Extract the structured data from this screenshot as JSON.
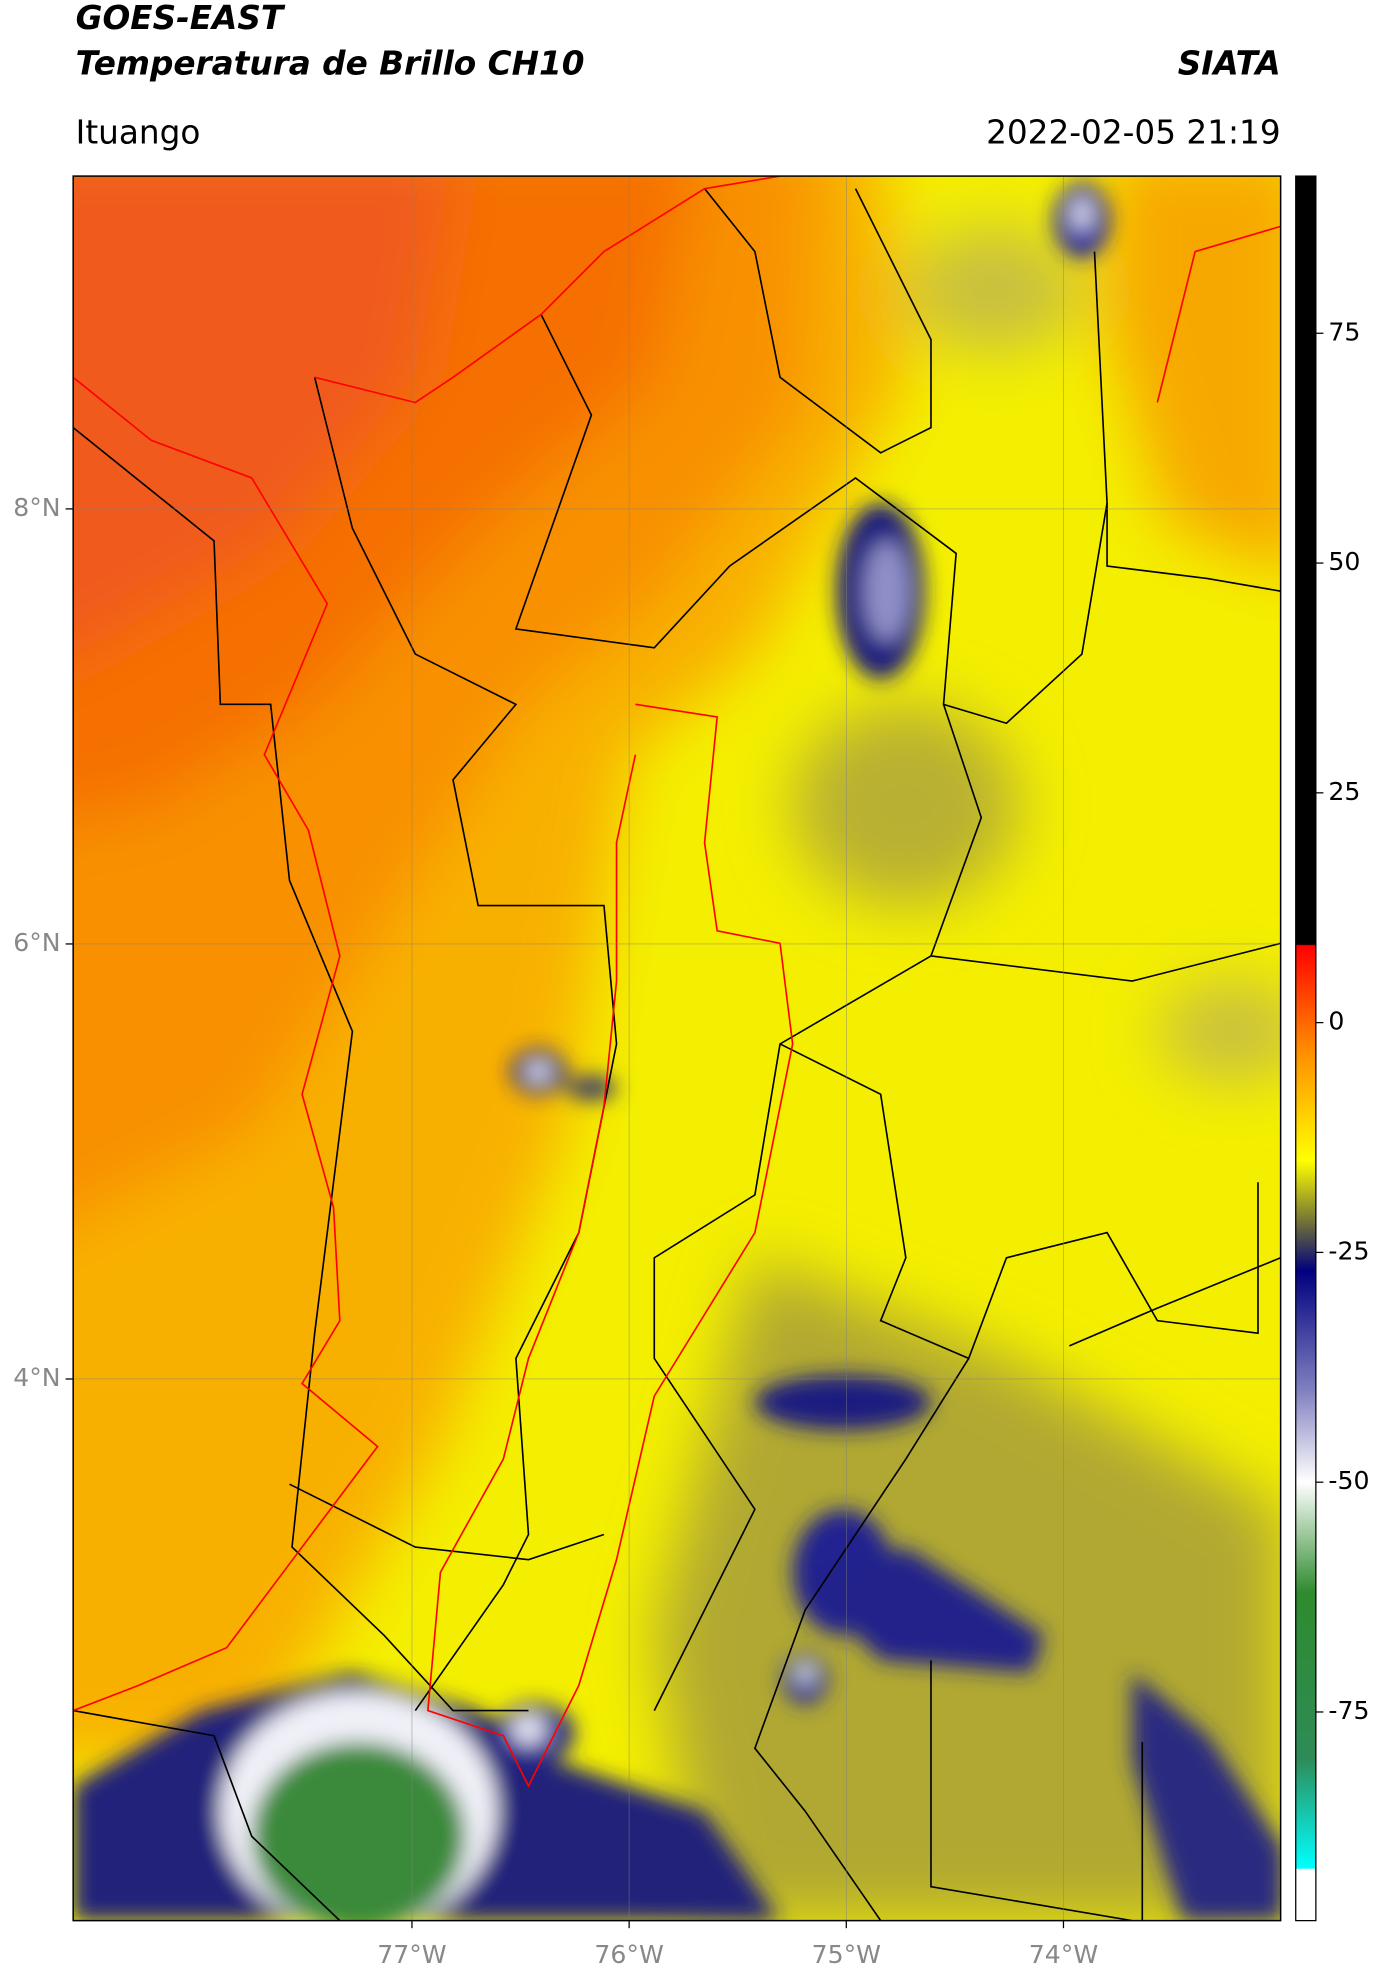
{
  "chart_data": {
    "type": "map",
    "title": "GOES-EAST",
    "subtitle": "Temperatura de Brillo CH10",
    "source": "SIATA",
    "location": "Ituango",
    "datetime": "2022-02-05 21:19",
    "xlim": [
      -78.56,
      -73.0
    ],
    "ylim": [
      1.51,
      9.53
    ],
    "xticks": [
      {
        "value": -77,
        "label": "77°W"
      },
      {
        "value": -76,
        "label": "76°W"
      },
      {
        "value": -75,
        "label": "75°W"
      },
      {
        "value": -74,
        "label": "74°W"
      }
    ],
    "yticks": [
      {
        "value": 8,
        "label": "8°N"
      },
      {
        "value": 6,
        "label": "6°N"
      },
      {
        "value": 4,
        "label": "4°N"
      }
    ],
    "grid": true,
    "colorbar": {
      "clim": [
        -97.7,
        92.1
      ],
      "ticks": [
        75,
        50,
        25,
        0,
        -25,
        -50,
        -75
      ],
      "stops": [
        {
          "value": 92.1,
          "color": "#000000"
        },
        {
          "value": 8.5,
          "color": "#000000"
        },
        {
          "value": 8.4,
          "color": "#ff0000"
        },
        {
          "value": -3,
          "color": "#ff8c00"
        },
        {
          "value": -15,
          "color": "#ffff00"
        },
        {
          "value": -22,
          "color": "#6b6b3a"
        },
        {
          "value": -27,
          "color": "#000080"
        },
        {
          "value": -40,
          "color": "#8080c0"
        },
        {
          "value": -50,
          "color": "#ffffff"
        },
        {
          "value": -62,
          "color": "#2e8b2e"
        },
        {
          "value": -80,
          "color": "#2e8b57"
        },
        {
          "value": -92,
          "color": "#00ffff"
        },
        {
          "value": -92.1,
          "color": "#ffffff"
        },
        {
          "value": -97.7,
          "color": "#ffffff"
        }
      ]
    }
  }
}
